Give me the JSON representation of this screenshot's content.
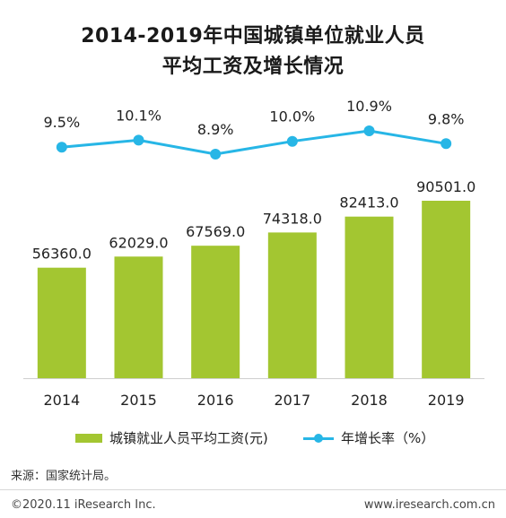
{
  "title_line1": "2014-2019年中国城镇单位就业人员",
  "title_line2": "平均工资及增长情况",
  "legend": {
    "bar_label": "城镇就业人员平均工资(元)",
    "line_label": "年增长率（%）"
  },
  "source": "来源：国家统计局。",
  "footer": {
    "copyright": "©2020.11 iResearch Inc.",
    "website": "www.iresearch.com.cn"
  },
  "colors": {
    "bar": "#a3c631",
    "line": "#27b6e6"
  },
  "chart_data": {
    "type": "bar",
    "categories": [
      "2014",
      "2015",
      "2016",
      "2017",
      "2018",
      "2019"
    ],
    "series": [
      {
        "name": "城镇就业人员平均工资(元)",
        "type": "bar",
        "values": [
          56360.0,
          62029.0,
          67569.0,
          74318.0,
          82413.0,
          90501.0
        ],
        "labels": [
          "56360.0",
          "62029.0",
          "67569.0",
          "74318.0",
          "82413.0",
          "90501.0"
        ]
      },
      {
        "name": "年增长率（%）",
        "type": "line",
        "values": [
          9.5,
          10.1,
          8.9,
          10.0,
          10.9,
          9.8
        ],
        "labels": [
          "9.5%",
          "10.1%",
          "8.9%",
          "10.0%",
          "10.9%",
          "9.8%"
        ]
      }
    ],
    "grid": false
  }
}
